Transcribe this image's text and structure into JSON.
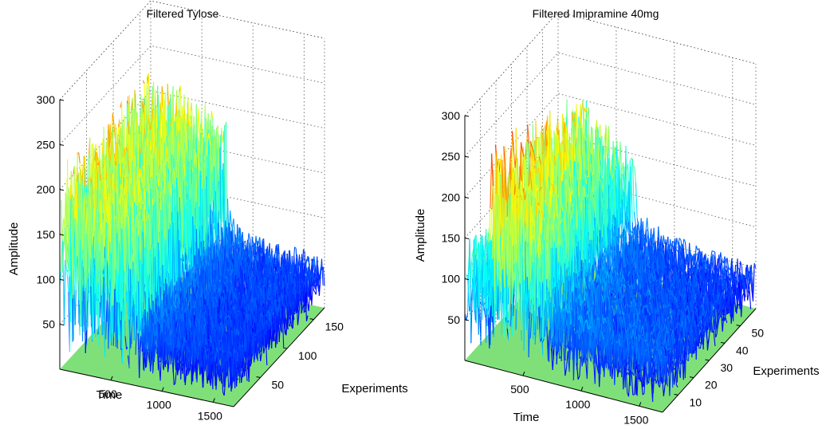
{
  "chart_data": [
    {
      "type": "surface",
      "title": "Filtered Tylose",
      "xlabel": "Time",
      "ylabel": "Experiments",
      "zlabel": "Amplitude",
      "x_ticks": [
        500,
        1000,
        1500
      ],
      "y_ticks": [
        50,
        100,
        150
      ],
      "z_ticks": [
        50,
        100,
        150,
        200,
        250,
        300
      ],
      "xlim": [
        0,
        1700
      ],
      "ylim": [
        0,
        170
      ],
      "zlim": [
        0,
        300
      ],
      "grid": true,
      "colormap": "jet",
      "floor_color": "#7fe07a",
      "peak_amplitude": 265,
      "profile": "high amplitude for early time (~200-250), decaying to ~50 after time 1000"
    },
    {
      "type": "surface",
      "title": "Filtered Imipramine 40mg",
      "xlabel": "Time",
      "ylabel": "Experiments",
      "zlabel": "Amplitude",
      "x_ticks": [
        500,
        1000,
        1500
      ],
      "y_ticks": [
        10,
        20,
        30,
        40,
        50
      ],
      "z_ticks": [
        50,
        100,
        150,
        200,
        250,
        300
      ],
      "xlim": [
        0,
        1700
      ],
      "ylim": [
        0,
        60
      ],
      "zlim": [
        0,
        320
      ],
      "grid": true,
      "colormap": "jet",
      "floor_color": "#7fe07a",
      "peak_amplitude": 300,
      "profile": "peaks near 250-300 for early time, decaying to ~50 after time 1000"
    }
  ]
}
